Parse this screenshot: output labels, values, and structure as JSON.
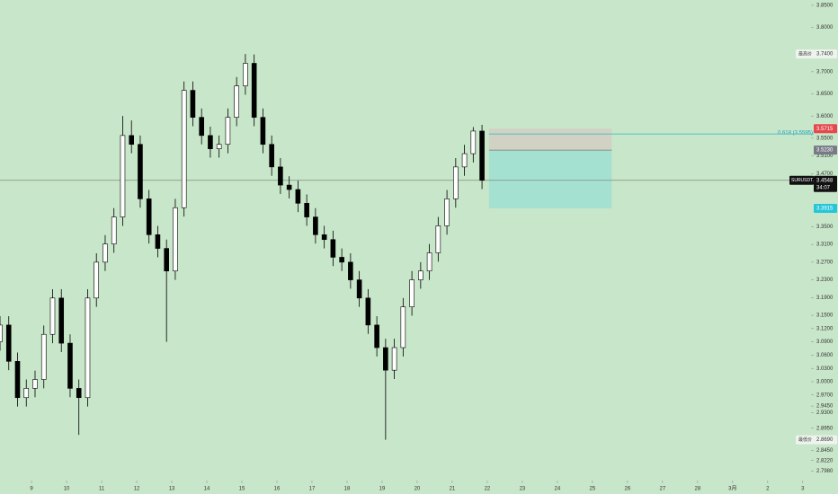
{
  "chart_data": {
    "type": "candlestick",
    "symbol": "SURUSDT.P",
    "last_price": {
      "value": 3.4548,
      "label": "3.4548"
    },
    "countdown": "34:07",
    "x": [
      -0.9,
      -0.65,
      -0.4,
      -0.15,
      0.1,
      0.35,
      0.6,
      0.85,
      1.1,
      1.35,
      1.6,
      1.85,
      2.1,
      2.35,
      2.6,
      2.85,
      3.1,
      3.35,
      3.6,
      3.85,
      4.1,
      4.35,
      4.6,
      4.85,
      5.1,
      5.35,
      5.6,
      5.85,
      6.1,
      6.35,
      6.6,
      6.85,
      7.1,
      7.35,
      7.6,
      7.85,
      8.1,
      8.35,
      8.6,
      8.85,
      9.1,
      9.35,
      9.6,
      9.85,
      10.1,
      10.35,
      10.6,
      10.85,
      11.1,
      11.35,
      11.6,
      11.85,
      12.1,
      12.35,
      12.6,
      12.85
    ],
    "open": [
      3.09,
      3.128,
      3.046,
      2.964,
      2.985,
      3.005,
      3.107,
      3.189,
      3.087,
      2.985,
      2.964,
      3.189,
      3.27,
      3.311,
      3.372,
      3.556,
      3.536,
      3.413,
      3.332,
      3.301,
      3.25,
      3.393,
      3.658,
      3.597,
      3.556,
      3.526,
      3.536,
      3.597,
      3.668,
      3.719,
      3.597,
      3.536,
      3.485,
      3.444,
      3.434,
      3.403,
      3.372,
      3.332,
      3.321,
      3.281,
      3.27,
      3.23,
      3.189,
      3.128,
      3.077,
      3.026,
      3.077,
      3.169,
      3.23,
      3.25,
      3.291,
      3.352,
      3.413,
      3.485,
      3.515,
      3.566
    ],
    "high": [
      3.148,
      3.148,
      3.066,
      3.005,
      3.025,
      3.127,
      3.209,
      3.209,
      3.107,
      3.005,
      3.209,
      3.29,
      3.331,
      3.392,
      3.6,
      3.59,
      3.556,
      3.433,
      3.352,
      3.321,
      3.413,
      3.678,
      3.678,
      3.617,
      3.576,
      3.556,
      3.617,
      3.688,
      3.74,
      3.739,
      3.617,
      3.556,
      3.505,
      3.464,
      3.454,
      3.423,
      3.392,
      3.352,
      3.341,
      3.301,
      3.29,
      3.25,
      3.209,
      3.148,
      3.097,
      3.097,
      3.189,
      3.25,
      3.27,
      3.311,
      3.372,
      3.433,
      3.505,
      3.535,
      3.575,
      3.58
    ],
    "low": [
      3.07,
      3.026,
      2.944,
      2.944,
      2.965,
      2.985,
      3.087,
      3.067,
      2.965,
      2.88,
      2.944,
      3.169,
      3.25,
      3.291,
      3.352,
      3.516,
      3.393,
      3.312,
      3.281,
      3.09,
      3.23,
      3.373,
      3.577,
      3.536,
      3.506,
      3.506,
      3.516,
      3.577,
      3.648,
      3.577,
      3.516,
      3.465,
      3.424,
      3.414,
      3.383,
      3.352,
      3.312,
      3.301,
      3.261,
      3.25,
      3.21,
      3.169,
      3.108,
      3.057,
      2.869,
      3.006,
      3.057,
      3.149,
      3.21,
      3.23,
      3.271,
      3.332,
      3.393,
      3.465,
      3.495,
      3.435
    ],
    "close": [
      3.128,
      3.046,
      2.964,
      2.985,
      3.005,
      3.107,
      3.189,
      3.087,
      2.985,
      2.964,
      3.189,
      3.27,
      3.311,
      3.372,
      3.556,
      3.536,
      3.413,
      3.332,
      3.301,
      3.25,
      3.393,
      3.658,
      3.597,
      3.556,
      3.526,
      3.536,
      3.597,
      3.668,
      3.719,
      3.597,
      3.536,
      3.485,
      3.444,
      3.434,
      3.403,
      3.372,
      3.332,
      3.321,
      3.281,
      3.27,
      3.23,
      3.189,
      3.128,
      3.077,
      3.026,
      3.077,
      3.169,
      3.23,
      3.25,
      3.291,
      3.352,
      3.413,
      3.485,
      3.515,
      3.566,
      3.4548
    ],
    "up_color": "#ffffff",
    "down_color": "#000000",
    "xlim": [
      -0.9,
      22.8
    ],
    "xticks": [
      {
        "value": 0,
        "label": "9"
      },
      {
        "value": 1,
        "label": "10"
      },
      {
        "value": 2,
        "label": "11"
      },
      {
        "value": 3,
        "label": "12"
      },
      {
        "value": 4,
        "label": "13"
      },
      {
        "value": 5,
        "label": "14"
      },
      {
        "value": 6,
        "label": "15"
      },
      {
        "value": 7,
        "label": "16"
      },
      {
        "value": 8,
        "label": "17"
      },
      {
        "value": 9,
        "label": "18"
      },
      {
        "value": 10,
        "label": "19"
      },
      {
        "value": 11,
        "label": "20"
      },
      {
        "value": 12,
        "label": "21"
      },
      {
        "value": 13,
        "label": "22"
      },
      {
        "value": 14,
        "label": "23"
      },
      {
        "value": 15,
        "label": "24"
      },
      {
        "value": 16,
        "label": "25"
      },
      {
        "value": 17,
        "label": "26"
      },
      {
        "value": 18,
        "label": "27"
      },
      {
        "value": 19,
        "label": "28"
      },
      {
        "value": 20,
        "label": "3月"
      },
      {
        "value": 21,
        "label": "2"
      },
      {
        "value": 22,
        "label": "3"
      }
    ],
    "ylim": [
      2.787,
      3.862
    ],
    "yticks": [
      {
        "value": 3.85,
        "label": "3.8500"
      },
      {
        "value": 3.8,
        "label": "3.8000"
      },
      {
        "value": 3.7,
        "label": "3.7000"
      },
      {
        "value": 3.65,
        "label": "3.6500"
      },
      {
        "value": 3.6,
        "label": "3.6000"
      },
      {
        "value": 3.55,
        "label": "3.5500"
      },
      {
        "value": 3.51,
        "label": "3.5100"
      },
      {
        "value": 3.47,
        "label": "3.4700"
      },
      {
        "value": 3.35,
        "label": "3.3500"
      },
      {
        "value": 3.31,
        "label": "3.3100"
      },
      {
        "value": 3.27,
        "label": "3.2700"
      },
      {
        "value": 3.23,
        "label": "3.2300"
      },
      {
        "value": 3.19,
        "label": "3.1900"
      },
      {
        "value": 3.15,
        "label": "3.1500"
      },
      {
        "value": 3.12,
        "label": "3.1200"
      },
      {
        "value": 3.09,
        "label": "3.0900"
      },
      {
        "value": 3.06,
        "label": "3.0600"
      },
      {
        "value": 3.03,
        "label": "3.0300"
      },
      {
        "value": 3.0,
        "label": "3.0000"
      },
      {
        "value": 2.97,
        "label": "2.9700"
      },
      {
        "value": 2.945,
        "label": "2.9450"
      },
      {
        "value": 2.93,
        "label": "2.9300"
      },
      {
        "value": 2.895,
        "label": "2.8950"
      },
      {
        "value": 2.845,
        "label": "2.8450"
      },
      {
        "value": 2.822,
        "label": "2.8220"
      },
      {
        "value": 2.798,
        "label": "2.7980"
      }
    ],
    "high_marker": {
      "title": "最高价",
      "value": 3.74,
      "label": "3.7400"
    },
    "low_marker": {
      "title": "最低价",
      "value": 2.869,
      "label": "2.8690"
    },
    "position": {
      "x_start": 13.05,
      "x_end": 16.55,
      "stop": {
        "value": 3.5715,
        "label": "3.5715"
      },
      "entry": {
        "value": 3.523,
        "label": "3.5230"
      },
      "target": {
        "value": 3.3915,
        "label": "3.3915"
      }
    },
    "fib_level": {
      "value": 3.5595,
      "label": "0.618 (3.5595)"
    }
  }
}
